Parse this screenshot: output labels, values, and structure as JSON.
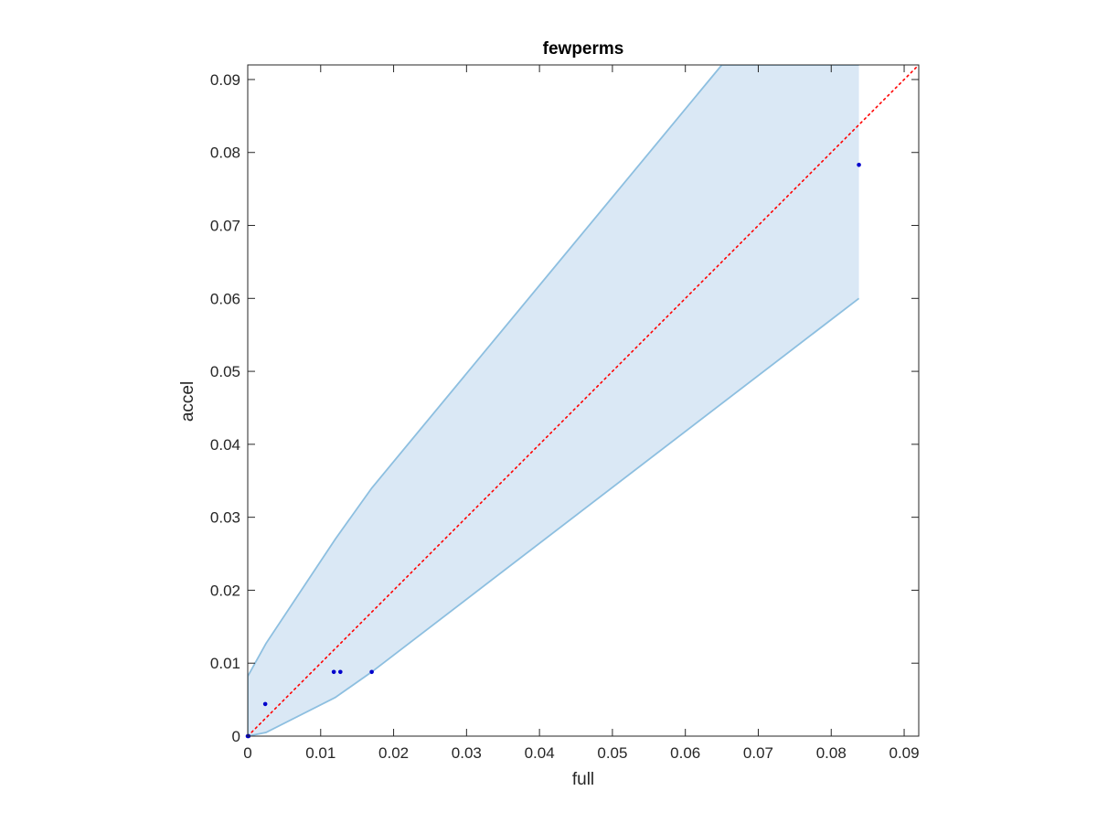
{
  "chart_data": {
    "type": "scatter",
    "title": "fewperms",
    "xlabel": "full",
    "ylabel": "accel",
    "xlim": [
      0,
      0.092
    ],
    "ylim": [
      0,
      0.092
    ],
    "xticks": [
      0,
      0.01,
      0.02,
      0.03,
      0.04,
      0.05,
      0.06,
      0.07,
      0.08,
      0.09
    ],
    "xtick_labels": [
      "0",
      "0.01",
      "0.02",
      "0.03",
      "0.04",
      "0.05",
      "0.06",
      "0.07",
      "0.08",
      "0.09"
    ],
    "yticks": [
      0,
      0.01,
      0.02,
      0.03,
      0.04,
      0.05,
      0.06,
      0.07,
      0.08,
      0.09
    ],
    "ytick_labels": [
      "0",
      "0.01",
      "0.02",
      "0.03",
      "0.04",
      "0.05",
      "0.06",
      "0.07",
      "0.08",
      "0.09"
    ],
    "grid": false,
    "band": {
      "fill_color": "#dae8f5",
      "edge_color": "#8dbfe0",
      "upper": {
        "x": [
          0,
          0.0025,
          0.012,
          0.017,
          0.065,
          0.0838
        ],
        "y": [
          0.0082,
          0.0127,
          0.027,
          0.034,
          0.0925,
          0.0925
        ]
      },
      "lower": {
        "x": [
          0,
          0.0025,
          0.012,
          0.017,
          0.0838
        ],
        "y": [
          0,
          0.0005,
          0.0053,
          0.0088,
          0.06
        ]
      }
    },
    "identity_line": {
      "color": "#ff0000",
      "style": "dotted",
      "x": [
        0,
        0.092
      ],
      "y": [
        0,
        0.092
      ]
    },
    "series": [
      {
        "marker_color": "#0000cc",
        "x": [
          0,
          0.0001,
          0.0024,
          0.0118,
          0.0127,
          0.017,
          0.0838
        ],
        "y": [
          0,
          0,
          0.0044,
          0.0088,
          0.0088,
          0.0088,
          0.0783
        ]
      }
    ]
  }
}
